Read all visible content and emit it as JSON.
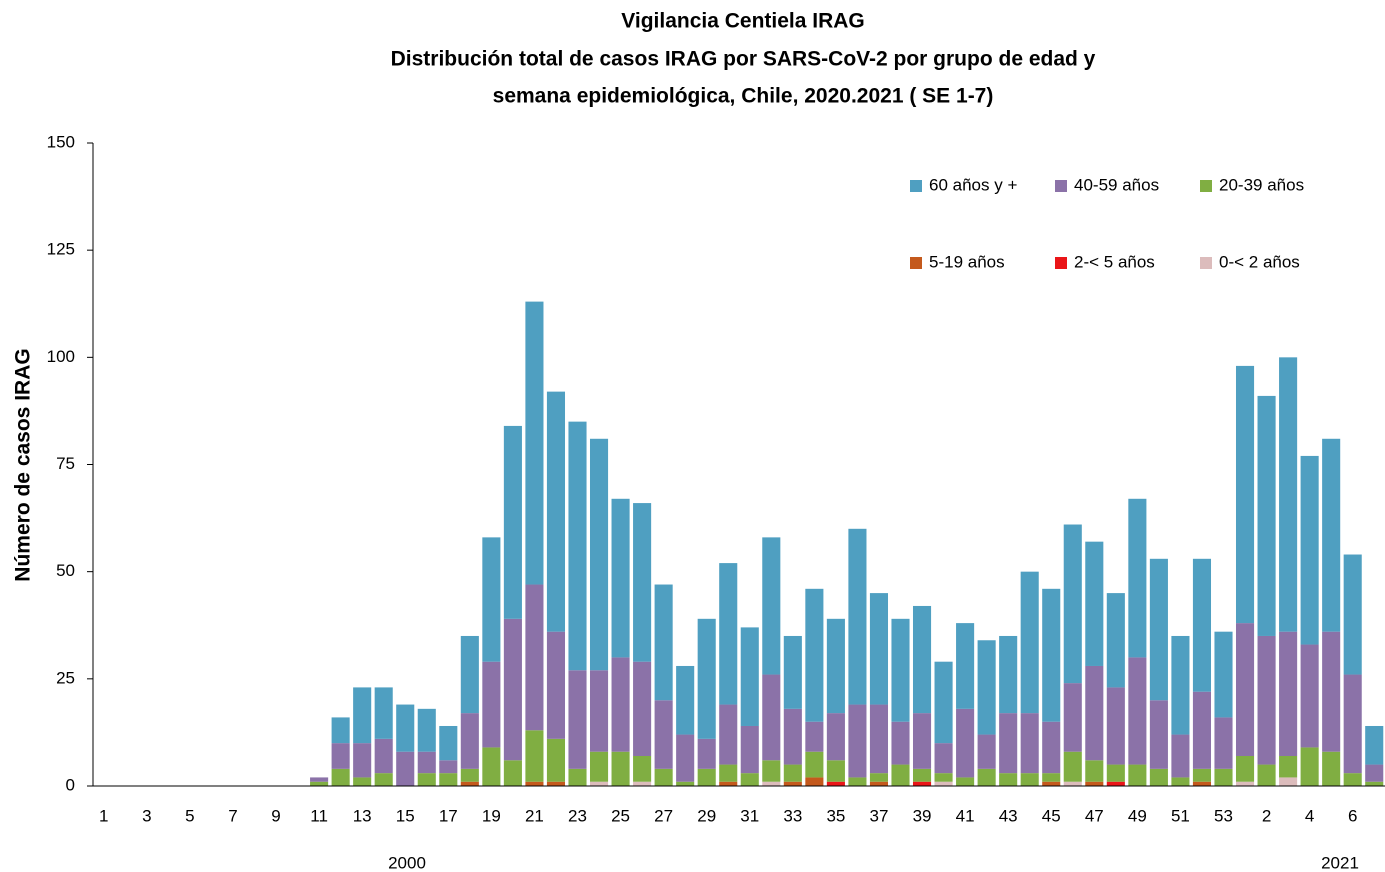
{
  "chart_data": {
    "type": "stacked_bar",
    "title": [
      "Vigilancia Centiela IRAG",
      "Distribución total  de casos IRAG  por SARS-CoV-2 por grupo de edad y",
      "semana epidemiológica,  Chile, 2020.2021 ( SE 1-7)"
    ],
    "y_label": "Número de casos IRAG",
    "annotations": [
      "2000",
      "2021"
    ],
    "categories": [
      "1",
      null,
      "3",
      null,
      "5",
      null,
      "7",
      null,
      "9",
      null,
      "11",
      null,
      "13",
      null,
      "15",
      null,
      "17",
      null,
      "19",
      null,
      "21",
      null,
      "23",
      null,
      "25",
      null,
      "27",
      null,
      "29",
      null,
      "31",
      null,
      "33",
      null,
      "35",
      null,
      "37",
      null,
      "39",
      null,
      "41",
      null,
      "43",
      null,
      "45",
      null,
      "47",
      null,
      "49",
      null,
      "51",
      null,
      "53",
      null,
      "2",
      null,
      "4",
      null,
      "6",
      null
    ],
    "series": [
      {
        "name": "60 años y +",
        "color": "#4f9fc1",
        "values": [
          0,
          0,
          0,
          0,
          0,
          0,
          0,
          0,
          0,
          0,
          0,
          6,
          13,
          12,
          11,
          10,
          8,
          18,
          29,
          45,
          66,
          56,
          58,
          54,
          37,
          37,
          27,
          16,
          28,
          33,
          23,
          32,
          17,
          31,
          22,
          41,
          26,
          24,
          25,
          19,
          20,
          22,
          18,
          33,
          31,
          37,
          29,
          22,
          37,
          33,
          23,
          31,
          20,
          60,
          56,
          64,
          44,
          45,
          28,
          9
        ]
      },
      {
        "name": "40-59 años",
        "color": "#8b72a8",
        "values": [
          0,
          0,
          0,
          0,
          0,
          0,
          0,
          0,
          0,
          0,
          1,
          6,
          8,
          8,
          8,
          5,
          3,
          13,
          20,
          33,
          34,
          25,
          23,
          19,
          22,
          22,
          16,
          11,
          7,
          14,
          11,
          20,
          13,
          7,
          11,
          17,
          16,
          10,
          13,
          7,
          16,
          8,
          14,
          14,
          12,
          16,
          22,
          18,
          25,
          16,
          10,
          18,
          12,
          31,
          30,
          29,
          24,
          28,
          23,
          4
        ]
      },
      {
        "name": "20-39 años",
        "color": "#80ae42",
        "values": [
          0,
          0,
          0,
          0,
          0,
          0,
          0,
          0,
          0,
          0,
          1,
          4,
          2,
          3,
          0,
          3,
          3,
          3,
          9,
          6,
          12,
          10,
          4,
          7,
          8,
          6,
          4,
          1,
          4,
          4,
          3,
          5,
          4,
          6,
          5,
          2,
          2,
          5,
          3,
          2,
          2,
          4,
          3,
          3,
          2,
          7,
          5,
          4,
          5,
          4,
          2,
          3,
          4,
          6,
          5,
          5,
          9,
          8,
          3,
          1
        ]
      },
      {
        "name": "5-19 años",
        "color": "#c4591c",
        "values": [
          0,
          0,
          0,
          0,
          0,
          0,
          0,
          0,
          0,
          0,
          0,
          0,
          0,
          0,
          0,
          0,
          0,
          1,
          0,
          0,
          1,
          1,
          0,
          0,
          0,
          0,
          0,
          0,
          0,
          1,
          0,
          0,
          1,
          2,
          0,
          0,
          1,
          0,
          0,
          0,
          0,
          0,
          0,
          0,
          1,
          0,
          1,
          0,
          0,
          0,
          0,
          1,
          0,
          0,
          0,
          0,
          0,
          0,
          0,
          0
        ]
      },
      {
        "name": "2-< 5 años",
        "color": "#ea1518",
        "values": [
          0,
          0,
          0,
          0,
          0,
          0,
          0,
          0,
          0,
          0,
          0,
          0,
          0,
          0,
          0,
          0,
          0,
          0,
          0,
          0,
          0,
          0,
          0,
          0,
          0,
          0,
          0,
          0,
          0,
          0,
          0,
          0,
          0,
          0,
          1,
          0,
          0,
          0,
          1,
          0,
          0,
          0,
          0,
          0,
          0,
          0,
          0,
          1,
          0,
          0,
          0,
          0,
          0,
          0,
          0,
          0,
          0,
          0,
          0,
          0
        ]
      },
      {
        "name": "0-< 2 años",
        "color": "#dcbcbc",
        "values": [
          0,
          0,
          0,
          0,
          0,
          0,
          0,
          0,
          0,
          0,
          0,
          0,
          0,
          0,
          0,
          0,
          0,
          0,
          0,
          0,
          0,
          0,
          0,
          1,
          0,
          1,
          0,
          0,
          0,
          0,
          0,
          1,
          0,
          0,
          0,
          0,
          0,
          0,
          0,
          1,
          0,
          0,
          0,
          0,
          0,
          1,
          0,
          0,
          0,
          0,
          0,
          0,
          0,
          1,
          0,
          2,
          0,
          0,
          0,
          0
        ]
      }
    ],
    "ylim": [
      0,
      150
    ],
    "yticks": [
      0,
      25,
      50,
      75,
      100,
      125,
      150
    ],
    "grid": false
  }
}
